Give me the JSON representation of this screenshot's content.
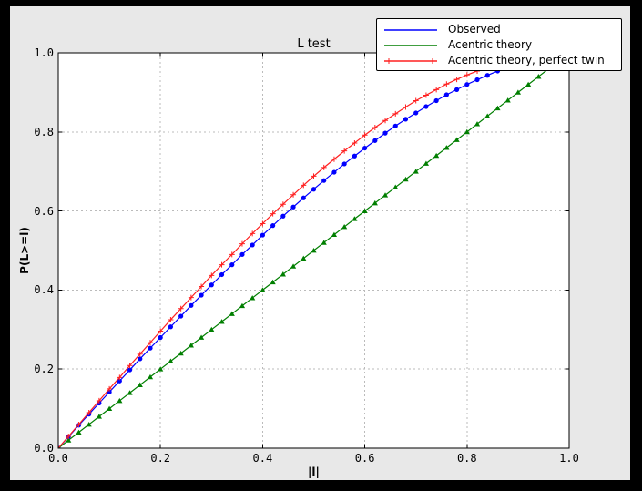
{
  "window": {
    "border_color": "#000000",
    "figure_bg": "#e8e8e8",
    "axes_bg": "#ffffff",
    "grid_color": "#bbbbbb"
  },
  "chart_data": {
    "type": "line",
    "title": "L test",
    "xlabel": "|l|",
    "ylabel": "P(L>=l)",
    "xlim": [
      0.0,
      1.0
    ],
    "ylim": [
      0.0,
      1.0
    ],
    "xticks": [
      0.0,
      0.2,
      0.4,
      0.6,
      0.8,
      1.0
    ],
    "yticks": [
      0.0,
      0.2,
      0.4,
      0.6,
      0.8,
      1.0
    ],
    "grid": true,
    "grid_style": "dashed",
    "legend_position": "upper right, overlapping top-right corner of axes",
    "series": [
      {
        "name": "Observed",
        "color": "#0000ff",
        "marker": "circle",
        "x": [
          0,
          0.02,
          0.04,
          0.06,
          0.08,
          0.1,
          0.12,
          0.14,
          0.16,
          0.18,
          0.2,
          0.22,
          0.24,
          0.26,
          0.28,
          0.3,
          0.32,
          0.34,
          0.36,
          0.38,
          0.4,
          0.42,
          0.44,
          0.46,
          0.48,
          0.5,
          0.52,
          0.54,
          0.56,
          0.58,
          0.6,
          0.62,
          0.64,
          0.66,
          0.68,
          0.7,
          0.72,
          0.74,
          0.76,
          0.78,
          0.8,
          0.82,
          0.84,
          0.86
        ],
        "y": [
          0,
          0.029,
          0.058,
          0.086,
          0.114,
          0.142,
          0.17,
          0.198,
          0.226,
          0.253,
          0.28,
          0.307,
          0.334,
          0.361,
          0.387,
          0.413,
          0.439,
          0.464,
          0.49,
          0.514,
          0.539,
          0.563,
          0.587,
          0.61,
          0.633,
          0.655,
          0.677,
          0.698,
          0.719,
          0.739,
          0.759,
          0.778,
          0.797,
          0.815,
          0.832,
          0.848,
          0.864,
          0.879,
          0.894,
          0.907,
          0.92,
          0.932,
          0.943,
          0.954
        ]
      },
      {
        "name": "Acentric theory",
        "color": "#007f00",
        "marker": "triangle-up",
        "x": [
          0,
          0.02,
          0.04,
          0.06,
          0.08,
          0.1,
          0.12,
          0.14,
          0.16,
          0.18,
          0.2,
          0.22,
          0.24,
          0.26,
          0.28,
          0.3,
          0.32,
          0.34,
          0.36,
          0.38,
          0.4,
          0.42,
          0.44,
          0.46,
          0.48,
          0.5,
          0.52,
          0.54,
          0.56,
          0.58,
          0.6,
          0.62,
          0.64,
          0.66,
          0.68,
          0.7,
          0.72,
          0.74,
          0.76,
          0.78,
          0.8,
          0.82,
          0.84,
          0.86,
          0.88,
          0.9,
          0.92,
          0.94,
          0.96,
          0.98,
          1.0
        ],
        "y": [
          0,
          0.02,
          0.04,
          0.06,
          0.08,
          0.1,
          0.12,
          0.14,
          0.16,
          0.18,
          0.2,
          0.22,
          0.24,
          0.26,
          0.28,
          0.3,
          0.32,
          0.34,
          0.36,
          0.38,
          0.4,
          0.42,
          0.44,
          0.46,
          0.48,
          0.5,
          0.52,
          0.54,
          0.56,
          0.58,
          0.6,
          0.62,
          0.64,
          0.66,
          0.68,
          0.7,
          0.72,
          0.74,
          0.76,
          0.78,
          0.8,
          0.82,
          0.84,
          0.86,
          0.88,
          0.9,
          0.92,
          0.94,
          0.96,
          0.98,
          1.0
        ]
      },
      {
        "name": "Acentric theory, perfect twin",
        "color": "#ff2020",
        "marker": "plus",
        "x": [
          0,
          0.02,
          0.04,
          0.06,
          0.08,
          0.1,
          0.12,
          0.14,
          0.16,
          0.18,
          0.2,
          0.22,
          0.24,
          0.26,
          0.28,
          0.3,
          0.32,
          0.34,
          0.36,
          0.38,
          0.4,
          0.42,
          0.44,
          0.46,
          0.48,
          0.5,
          0.52,
          0.54,
          0.56,
          0.58,
          0.6,
          0.62,
          0.64,
          0.66,
          0.68,
          0.7,
          0.72,
          0.74,
          0.76,
          0.78,
          0.8,
          0.82,
          0.84,
          0.86
        ],
        "y": [
          0,
          0.03,
          0.06,
          0.09,
          0.12,
          0.15,
          0.179,
          0.209,
          0.238,
          0.267,
          0.296,
          0.325,
          0.353,
          0.381,
          0.409,
          0.437,
          0.464,
          0.49,
          0.517,
          0.543,
          0.568,
          0.593,
          0.617,
          0.641,
          0.665,
          0.688,
          0.71,
          0.731,
          0.752,
          0.772,
          0.792,
          0.811,
          0.829,
          0.846,
          0.863,
          0.879,
          0.893,
          0.907,
          0.921,
          0.933,
          0.944,
          0.954,
          0.964,
          0.972
        ]
      }
    ]
  }
}
